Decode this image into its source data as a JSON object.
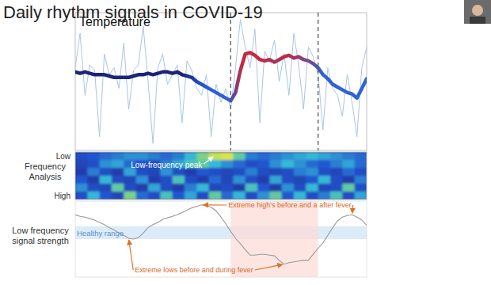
{
  "title": "Daily rhythm signals in COVID-19",
  "chart_data": [
    {
      "type": "line",
      "title": "Temperature",
      "x": [
        0,
        1,
        2,
        3,
        4,
        5,
        6,
        7,
        8,
        9,
        10,
        11,
        12,
        13,
        14,
        15,
        16,
        17,
        18,
        19,
        20,
        21,
        22,
        23,
        24,
        25,
        26,
        27,
        28,
        29,
        30,
        31,
        32,
        33,
        34,
        35,
        36,
        37,
        38,
        39,
        40,
        41,
        42,
        43,
        44,
        45,
        46,
        47,
        48,
        49,
        50,
        51,
        52,
        53,
        54,
        55,
        56,
        57,
        58,
        59,
        60
      ],
      "xlim": [
        0,
        60
      ],
      "ylim": [
        0,
        100
      ],
      "tick_labels": false,
      "vlines": [
        32,
        50
      ],
      "series": [
        {
          "color": "#a9c6e6",
          "values": [
            60,
            85,
            40,
            62,
            58,
            10,
            70,
            55,
            60,
            45,
            78,
            30,
            58,
            62,
            90,
            50,
            5,
            60,
            70,
            48,
            55,
            62,
            20,
            65,
            58,
            45,
            40,
            55,
            10,
            48,
            35,
            45,
            30,
            60,
            95,
            75,
            60,
            88,
            20,
            72,
            65,
            80,
            50,
            70,
            40,
            85,
            62,
            30,
            75,
            68,
            55,
            15,
            60,
            45,
            40,
            25,
            55,
            35,
            10,
            60,
            75
          ]
        },
        {
          "colors": [
            "#1c237a",
            "#1c237a",
            "#1c237a",
            "#1c237a",
            "#1c237a",
            "#1c237a",
            "#1c237a",
            "#1c237a",
            "#1c237a",
            "#1c237a",
            "#1c237a",
            "#1c237a",
            "#1c237a",
            "#1c237a",
            "#1c237a",
            "#1c237a",
            "#1c237a",
            "#1c237a",
            "#1c237a",
            "#1c237a",
            "#1c237a",
            "#1c237a",
            "#1c237a",
            "#1e2e8c",
            "#2038a0",
            "#2444b8",
            "#2850c8",
            "#2c58d2",
            "#2e5fd8",
            "#2e5fd8",
            "#2e5fd8",
            "#2e5fd8",
            "#3a5ad0",
            "#7a3a8a",
            "#b83048",
            "#c8283c",
            "#c8283c",
            "#c8283c",
            "#c8283c",
            "#b03050",
            "#b83048",
            "#9a3868",
            "#b03050",
            "#c02840",
            "#b83048",
            "#a03462",
            "#983a6c",
            "#8a4078",
            "#7a4a88",
            "#5e4e9e",
            "#4458b8",
            "#2f62d8",
            "#2f62d8",
            "#2f62d8",
            "#2f62d8",
            "#2f62d8",
            "#2f62d8",
            "#2f62d8",
            "#2f62d8",
            "#2f62d8",
            "#2f62d8"
          ],
          "values": [
            57,
            56,
            57,
            56,
            55,
            55,
            55,
            54,
            53,
            53,
            53,
            53,
            54,
            55,
            55,
            56,
            55,
            56,
            57,
            57,
            56,
            57,
            55,
            54,
            53,
            50,
            48,
            46,
            44,
            42,
            40,
            38,
            36,
            42,
            58,
            70,
            71,
            69,
            66,
            65,
            66,
            64,
            66,
            68,
            69,
            67,
            68,
            66,
            65,
            63,
            60,
            55,
            52,
            48,
            46,
            44,
            42,
            41,
            38,
            45,
            52
          ]
        }
      ]
    },
    {
      "type": "heatmap",
      "y_label": "Frequency Analysis",
      "tick_labels": "y",
      "rows": [
        "Low",
        null,
        null,
        null,
        null,
        "High"
      ],
      "zlim": [
        0,
        1
      ],
      "cells": [
        [
          0.3,
          0.35,
          0.4,
          0.45,
          0.5,
          0.5,
          0.45,
          0.4,
          0.45,
          0.6,
          0.75,
          0.9,
          0.95,
          0.7,
          0.45,
          0.4,
          0.45,
          0.5,
          0.55,
          0.6,
          0.55,
          0.5,
          0.45,
          0.4
        ],
        [
          0.25,
          0.3,
          0.5,
          0.55,
          0.4,
          0.35,
          0.3,
          0.45,
          0.55,
          0.65,
          0.7,
          0.6,
          0.5,
          0.4,
          0.3,
          0.35,
          0.5,
          0.6,
          0.5,
          0.4,
          0.35,
          0.45,
          0.55,
          0.4
        ],
        [
          0.2,
          0.45,
          0.3,
          0.2,
          0.55,
          0.3,
          0.25,
          0.5,
          0.3,
          0.2,
          0.35,
          0.3,
          0.25,
          0.3,
          0.45,
          0.3,
          0.25,
          0.3,
          0.45,
          0.5,
          0.3,
          0.25,
          0.4,
          0.3
        ],
        [
          0.35,
          0.2,
          0.6,
          0.3,
          0.25,
          0.5,
          0.2,
          0.3,
          0.65,
          0.3,
          0.2,
          0.4,
          0.25,
          0.5,
          0.3,
          0.2,
          0.55,
          0.3,
          0.25,
          0.35,
          0.6,
          0.3,
          0.2,
          0.45
        ],
        [
          0.5,
          0.3,
          0.25,
          0.7,
          0.3,
          0.2,
          0.55,
          0.3,
          0.2,
          0.45,
          0.6,
          0.25,
          0.3,
          0.2,
          0.65,
          0.35,
          0.2,
          0.5,
          0.3,
          0.6,
          0.25,
          0.3,
          0.7,
          0.3
        ],
        [
          0.3,
          0.6,
          0.35,
          0.25,
          0.75,
          0.4,
          0.3,
          0.65,
          0.35,
          0.55,
          0.3,
          0.7,
          0.4,
          0.6,
          0.3,
          0.5,
          0.7,
          0.35,
          0.6,
          0.3,
          0.45,
          0.65,
          0.3,
          0.55
        ]
      ],
      "annotations": [
        {
          "text": "Low-frequency peak",
          "x": 11,
          "y": 0
        }
      ]
    },
    {
      "type": "line",
      "y_label": "Low frequency signal strength",
      "x": [
        0,
        1,
        2,
        3,
        4,
        5,
        6,
        7,
        8,
        9,
        10,
        11,
        12,
        13,
        14,
        15,
        16,
        17,
        18,
        19,
        20,
        21,
        22,
        23,
        24,
        25,
        26,
        27,
        28,
        29,
        30,
        31,
        32,
        33,
        34,
        35,
        36,
        37,
        38,
        39,
        40,
        41,
        42,
        43,
        44,
        45,
        46,
        47,
        48,
        49,
        50,
        51,
        52,
        53,
        54,
        55,
        56,
        57,
        58,
        59,
        60
      ],
      "xlim": [
        0,
        60
      ],
      "ylim": [
        0,
        100
      ],
      "tick_labels": false,
      "bands": [
        {
          "label": "Healthy range",
          "range": [
            50,
            67
          ]
        }
      ],
      "highlight": [
        32,
        50
      ],
      "series": [
        {
          "color": "#9a9a9a",
          "values": [
            82,
            80,
            79,
            77,
            75,
            72,
            69,
            65,
            62,
            58,
            55,
            51,
            50,
            52,
            58,
            65,
            69,
            72,
            76,
            78,
            80,
            82,
            85,
            88,
            91,
            93,
            95,
            94,
            92,
            87,
            79,
            70,
            60,
            51,
            44,
            36,
            29,
            29,
            30,
            30,
            29,
            28,
            22,
            17,
            19,
            20,
            21,
            22,
            22,
            30,
            38,
            45,
            55,
            65,
            74,
            79,
            81,
            82,
            79,
            75,
            68
          ]
        }
      ],
      "annotations": [
        {
          "text": "Extreme lows before and during fever",
          "x": [
            11,
            43
          ]
        },
        {
          "text": "Extreme high's before and a after fever",
          "x": [
            26,
            57
          ]
        }
      ]
    }
  ]
}
